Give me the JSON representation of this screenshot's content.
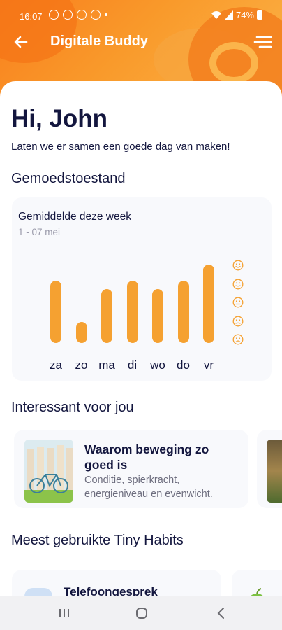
{
  "status_bar": {
    "time": "16:07",
    "battery": "74%"
  },
  "app": {
    "title": "Digitale Buddy"
  },
  "greeting": {
    "title": "Hi, John",
    "subtitle": "Laten we er samen een goede dag van maken!"
  },
  "mood": {
    "section_title": "Gemoedstoestand",
    "card_title": "Gemiddelde deze week",
    "date_range": "1 - 07 mei",
    "accent_color": "#f5a131",
    "chart_data": {
      "type": "bar",
      "categories": [
        "za",
        "zo",
        "ma",
        "di",
        "wo",
        "do",
        "vr"
      ],
      "values": [
        3.5,
        1,
        3,
        3.5,
        3,
        3.5,
        4.5
      ],
      "ylim": [
        0,
        5
      ],
      "y_scale_icons": [
        "very-happy-face-icon",
        "happy-face-icon",
        "neutral-face-icon",
        "sad-face-icon",
        "very-sad-face-icon"
      ]
    }
  },
  "interesting": {
    "section_title": "Interessant voor jou",
    "articles": [
      {
        "title": "Waarom beweging zo goed is",
        "description": "Conditie, spierkracht, energieniveau en evenwicht."
      }
    ]
  },
  "habits": {
    "section_title": "Meest gebruikte Tiny Habits",
    "items": [
      {
        "title": "Telefoongesprek"
      }
    ]
  }
}
